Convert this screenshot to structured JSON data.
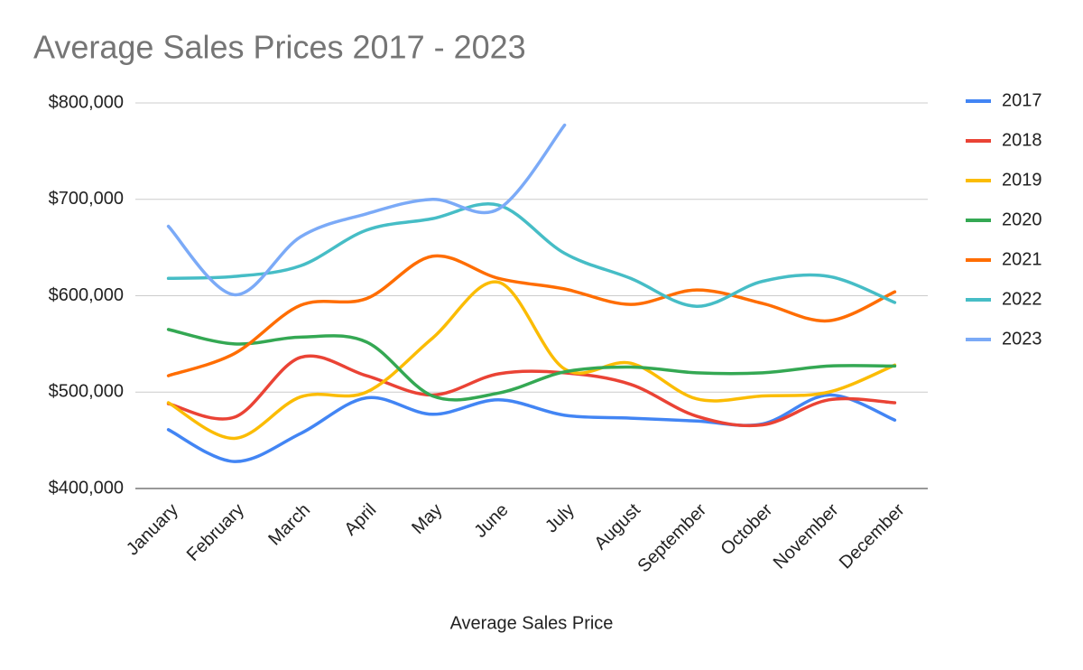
{
  "chart_data": {
    "type": "line",
    "title": "Average Sales Prices 2017 - 2023",
    "x_label": "Average Sales Price",
    "categories": [
      "January",
      "February",
      "March",
      "April",
      "May",
      "June",
      "July",
      "August",
      "September",
      "October",
      "November",
      "December"
    ],
    "ylim": [
      400000,
      800000
    ],
    "yticks": [
      {
        "value": 400000,
        "label": "$400,000"
      },
      {
        "value": 500000,
        "label": "$500,000"
      },
      {
        "value": 600000,
        "label": "$600,000"
      },
      {
        "value": 700000,
        "label": "$700,000"
      },
      {
        "value": 800000,
        "label": "$800,000"
      }
    ],
    "grid": true,
    "legend": "right",
    "smooth": true,
    "series": [
      {
        "name": "2017",
        "color": "#4285f4",
        "values": [
          461000,
          428000,
          457000,
          494000,
          477000,
          492000,
          476000,
          473000,
          470000,
          467000,
          497000,
          471000
        ]
      },
      {
        "name": "2018",
        "color": "#ea4335",
        "values": [
          488000,
          474000,
          536000,
          517000,
          497000,
          519000,
          520000,
          508000,
          475000,
          466000,
          492000,
          489000
        ]
      },
      {
        "name": "2019",
        "color": "#fbbc04",
        "values": [
          489000,
          452000,
          495000,
          500000,
          556000,
          614000,
          524000,
          530000,
          493000,
          496000,
          500000,
          528000
        ]
      },
      {
        "name": "2020",
        "color": "#34a853",
        "values": [
          565000,
          550000,
          557000,
          552000,
          496000,
          499000,
          521000,
          526000,
          520000,
          520000,
          527000,
          527000
        ]
      },
      {
        "name": "2021",
        "color": "#ff6d01",
        "values": [
          517000,
          540000,
          590000,
          597000,
          641000,
          618000,
          607000,
          591000,
          606000,
          592000,
          574000,
          604000
        ]
      },
      {
        "name": "2022",
        "color": "#46bdc6",
        "values": [
          618000,
          620000,
          631000,
          668000,
          680000,
          694000,
          644000,
          618000,
          589000,
          615000,
          620000,
          593000
        ]
      },
      {
        "name": "2023",
        "color": "#7baaf7",
        "values": [
          672000,
          601000,
          661000,
          685000,
          700000,
          690000,
          777000,
          null,
          null,
          null,
          null,
          null
        ]
      }
    ]
  }
}
